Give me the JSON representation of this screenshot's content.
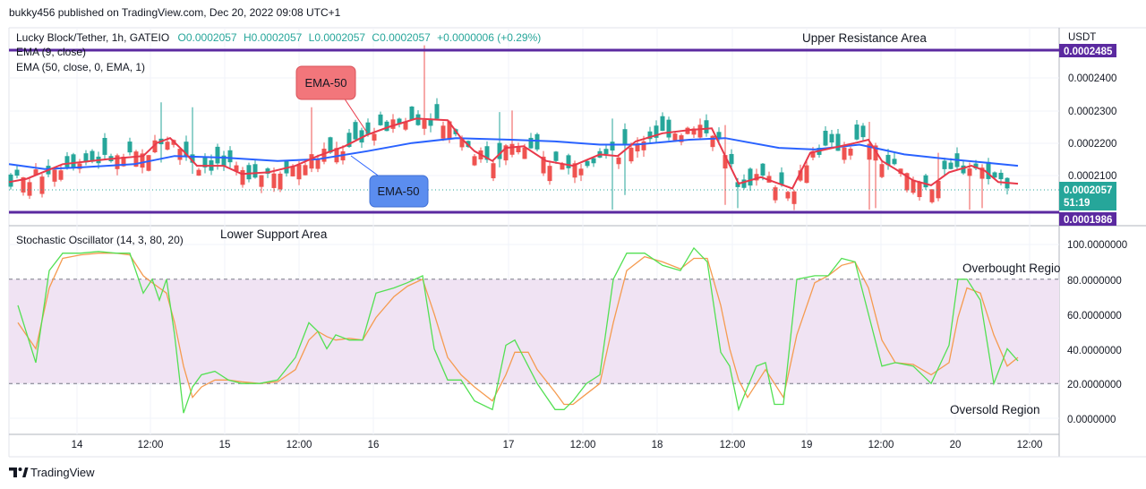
{
  "header": {
    "publisher": "bukky456 published on TradingView.com, Dec 20, 2022 09:08 UTC+1",
    "symbol": "Lucky Block/Tether, 1h, GATEIO",
    "open": "O0.0002057",
    "high": "H0.0002057",
    "low": "L0.0002057",
    "close": "C0.0002057",
    "change": "+0.0000006 (+0.29%)",
    "ema_fast": "EMA (9, close)",
    "ema_slow": "EMA (50, close, 0, EMA, 1)",
    "oscillator": "Stochastic Oscillator (14, 3, 80, 20)"
  },
  "annotations": {
    "upper": "Upper Resistance Area",
    "lower": "Lower Support Area",
    "overbought": "Overbought Regio",
    "oversold": "Oversold Region",
    "callout_red": "EMA-50",
    "callout_blue": "EMA-50"
  },
  "price_axis": {
    "currency": "USDT",
    "ticks": [
      "0.0002400",
      "0.0002300",
      "0.0002200",
      "0.0002100"
    ],
    "resistance_tag": "0.0002485",
    "current_tag": "0.0002057",
    "countdown": "51:19",
    "support_tag": "0.0001986"
  },
  "osc_axis": {
    "ticks": [
      "100.0000000",
      "80.0000000",
      "60.0000000",
      "40.0000000",
      "20.0000000",
      "0.0000000"
    ]
  },
  "time_axis": [
    "14",
    "12:00",
    "15",
    "12:00",
    "16",
    "17",
    "12:00",
    "18",
    "12:00",
    "19",
    "12:00",
    "20",
    "12:00"
  ],
  "footer": {
    "logo": "TradingView"
  },
  "colors": {
    "up": "#26a69a",
    "down": "#ef5350",
    "ema9": "#e8394a",
    "ema50": "#2962ff",
    "level": "#5b2aa0",
    "stoch_k": "#53e053",
    "stoch_d": "#f59b50",
    "band": "#f0e3f3",
    "callout_red": "#f2767b",
    "callout_blue": "#5b8def",
    "current": "#26a69a"
  },
  "chart_data": {
    "type": "candlestick",
    "price_range": [
      0.000198,
      0.00025
    ],
    "levels": {
      "resistance": 0.0002485,
      "support": 0.0001986,
      "current": 0.0002057
    },
    "ema9": [
      [
        0,
        0.000208
      ],
      [
        20,
        0.000209
      ],
      [
        60,
        0.0002135
      ],
      [
        110,
        0.000215
      ],
      [
        150,
        0.000216
      ],
      [
        165,
        0.00022
      ],
      [
        180,
        0.0002215
      ],
      [
        195,
        0.0002175
      ],
      [
        210,
        0.000213
      ],
      [
        240,
        0.000213
      ],
      [
        260,
        0.0002105
      ],
      [
        290,
        0.000211
      ],
      [
        320,
        0.000213
      ],
      [
        345,
        0.000216
      ],
      [
        375,
        0.000219
      ],
      [
        400,
        0.0002225
      ],
      [
        425,
        0.000225
      ],
      [
        455,
        0.0002275
      ],
      [
        490,
        0.000227
      ],
      [
        505,
        0.0002215
      ],
      [
        520,
        0.0002175
      ],
      [
        540,
        0.0002145
      ],
      [
        555,
        0.0002185
      ],
      [
        575,
        0.000219
      ],
      [
        600,
        0.0002145
      ],
      [
        630,
        0.000213
      ],
      [
        660,
        0.0002165
      ],
      [
        680,
        0.000216
      ],
      [
        700,
        0.0002205
      ],
      [
        730,
        0.000223
      ],
      [
        760,
        0.000224
      ],
      [
        785,
        0.0002245
      ],
      [
        800,
        0.000216
      ],
      [
        815,
        0.0002075
      ],
      [
        840,
        0.0002095
      ],
      [
        860,
        0.0002075
      ],
      [
        875,
        0.000206
      ],
      [
        895,
        0.000217
      ],
      [
        920,
        0.0002185
      ],
      [
        945,
        0.00022
      ],
      [
        960,
        0.000221
      ],
      [
        975,
        0.0002145
      ],
      [
        990,
        0.000212
      ],
      [
        1010,
        0.0002085
      ],
      [
        1030,
        0.000207
      ],
      [
        1050,
        0.000211
      ],
      [
        1075,
        0.000213
      ],
      [
        1090,
        0.0002115
      ],
      [
        1105,
        0.000208
      ],
      [
        1127,
        0.0002075
      ]
    ],
    "ema50": [
      [
        0,
        0.0002135
      ],
      [
        40,
        0.000212
      ],
      [
        80,
        0.0002125
      ],
      [
        140,
        0.0002135
      ],
      [
        185,
        0.000216
      ],
      [
        240,
        0.0002155
      ],
      [
        300,
        0.0002145
      ],
      [
        345,
        0.000215
      ],
      [
        400,
        0.0002175
      ],
      [
        450,
        0.00022
      ],
      [
        500,
        0.0002215
      ],
      [
        560,
        0.000221
      ],
      [
        610,
        0.0002205
      ],
      [
        660,
        0.0002195
      ],
      [
        700,
        0.0002195
      ],
      [
        760,
        0.000221
      ],
      [
        800,
        0.0002215
      ],
      [
        830,
        0.00022
      ],
      [
        860,
        0.0002185
      ],
      [
        900,
        0.000218
      ],
      [
        950,
        0.0002195
      ],
      [
        1000,
        0.0002165
      ],
      [
        1050,
        0.000215
      ],
      [
        1090,
        0.000214
      ],
      [
        1127,
        0.000213
      ]
    ],
    "stoch_range": [
      0,
      100
    ],
    "stoch_levels": [
      80,
      20
    ],
    "stoch_k": [
      [
        10,
        65
      ],
      [
        30,
        32
      ],
      [
        45,
        85
      ],
      [
        60,
        95
      ],
      [
        80,
        95
      ],
      [
        100,
        96
      ],
      [
        120,
        95
      ],
      [
        135,
        95
      ],
      [
        150,
        72
      ],
      [
        160,
        80
      ],
      [
        168,
        68
      ],
      [
        176,
        80
      ],
      [
        185,
        48
      ],
      [
        195,
        3
      ],
      [
        205,
        18
      ],
      [
        215,
        25
      ],
      [
        230,
        27
      ],
      [
        245,
        22
      ],
      [
        260,
        20
      ],
      [
        280,
        20
      ],
      [
        300,
        22
      ],
      [
        320,
        35
      ],
      [
        335,
        55
      ],
      [
        345,
        50
      ],
      [
        355,
        40
      ],
      [
        365,
        48
      ],
      [
        380,
        45
      ],
      [
        395,
        45
      ],
      [
        410,
        72
      ],
      [
        430,
        75
      ],
      [
        445,
        78
      ],
      [
        462,
        82
      ],
      [
        475,
        40
      ],
      [
        490,
        22
      ],
      [
        505,
        22
      ],
      [
        520,
        10
      ],
      [
        540,
        5
      ],
      [
        555,
        42
      ],
      [
        565,
        45
      ],
      [
        580,
        30
      ],
      [
        590,
        20
      ],
      [
        610,
        5
      ],
      [
        620,
        5
      ],
      [
        630,
        10
      ],
      [
        645,
        20
      ],
      [
        660,
        25
      ],
      [
        675,
        80
      ],
      [
        690,
        95
      ],
      [
        710,
        95
      ],
      [
        730,
        88
      ],
      [
        750,
        85
      ],
      [
        765,
        98
      ],
      [
        780,
        90
      ],
      [
        795,
        38
      ],
      [
        805,
        30
      ],
      [
        815,
        5
      ],
      [
        825,
        18
      ],
      [
        835,
        30
      ],
      [
        845,
        32
      ],
      [
        855,
        8
      ],
      [
        865,
        8
      ],
      [
        880,
        80
      ],
      [
        900,
        82
      ],
      [
        915,
        82
      ],
      [
        930,
        92
      ],
      [
        945,
        90
      ],
      [
        960,
        60
      ],
      [
        975,
        30
      ],
      [
        990,
        32
      ],
      [
        1010,
        30
      ],
      [
        1030,
        20
      ],
      [
        1050,
        42
      ],
      [
        1060,
        80
      ],
      [
        1070,
        80
      ],
      [
        1085,
        68
      ],
      [
        1100,
        20
      ],
      [
        1115,
        40
      ],
      [
        1127,
        33
      ]
    ],
    "stoch_d": [
      [
        10,
        55
      ],
      [
        30,
        40
      ],
      [
        45,
        75
      ],
      [
        60,
        92
      ],
      [
        80,
        94
      ],
      [
        100,
        95
      ],
      [
        120,
        95
      ],
      [
        135,
        94
      ],
      [
        150,
        82
      ],
      [
        160,
        78
      ],
      [
        168,
        75
      ],
      [
        176,
        72
      ],
      [
        185,
        55
      ],
      [
        195,
        30
      ],
      [
        205,
        12
      ],
      [
        215,
        18
      ],
      [
        230,
        22
      ],
      [
        245,
        22
      ],
      [
        260,
        21
      ],
      [
        280,
        20
      ],
      [
        300,
        21
      ],
      [
        320,
        28
      ],
      [
        335,
        45
      ],
      [
        345,
        50
      ],
      [
        355,
        47
      ],
      [
        365,
        45
      ],
      [
        380,
        46
      ],
      [
        395,
        45
      ],
      [
        410,
        58
      ],
      [
        430,
        70
      ],
      [
        445,
        76
      ],
      [
        462,
        80
      ],
      [
        475,
        60
      ],
      [
        490,
        35
      ],
      [
        505,
        25
      ],
      [
        520,
        18
      ],
      [
        540,
        10
      ],
      [
        555,
        25
      ],
      [
        565,
        38
      ],
      [
        580,
        38
      ],
      [
        590,
        28
      ],
      [
        610,
        15
      ],
      [
        620,
        8
      ],
      [
        630,
        8
      ],
      [
        645,
        14
      ],
      [
        660,
        20
      ],
      [
        675,
        55
      ],
      [
        690,
        85
      ],
      [
        710,
        93
      ],
      [
        730,
        90
      ],
      [
        750,
        86
      ],
      [
        765,
        92
      ],
      [
        780,
        92
      ],
      [
        795,
        65
      ],
      [
        805,
        40
      ],
      [
        815,
        22
      ],
      [
        825,
        12
      ],
      [
        835,
        20
      ],
      [
        845,
        28
      ],
      [
        855,
        20
      ],
      [
        865,
        12
      ],
      [
        880,
        48
      ],
      [
        900,
        78
      ],
      [
        915,
        82
      ],
      [
        930,
        88
      ],
      [
        945,
        90
      ],
      [
        960,
        75
      ],
      [
        975,
        45
      ],
      [
        990,
        32
      ],
      [
        1010,
        31
      ],
      [
        1030,
        25
      ],
      [
        1050,
        32
      ],
      [
        1060,
        58
      ],
      [
        1070,
        75
      ],
      [
        1085,
        72
      ],
      [
        1100,
        48
      ],
      [
        1115,
        30
      ],
      [
        1127,
        35
      ]
    ]
  }
}
